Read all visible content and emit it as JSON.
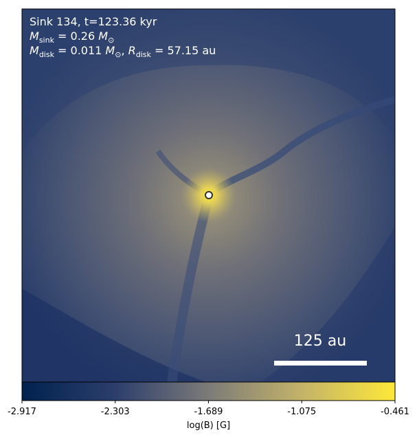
{
  "chart_data": {
    "type": "image",
    "annotations": [
      [
        {
          "text": "Sink 134, t=123.36 kyr"
        }
      ],
      [
        {
          "text": "M",
          "style": "italic"
        },
        {
          "text": "sink",
          "style": "sub"
        },
        {
          "text": " = 0.26 "
        },
        {
          "text": "M",
          "style": "italic"
        },
        {
          "text": "⊙",
          "style": "sub"
        }
      ],
      [
        {
          "text": "M",
          "style": "italic"
        },
        {
          "text": "disk",
          "style": "sub"
        },
        {
          "text": " = 0.011 "
        },
        {
          "text": "M",
          "style": "italic"
        },
        {
          "text": "⊙",
          "style": "sub"
        },
        {
          "text": ", "
        },
        {
          "text": "R",
          "style": "italic"
        },
        {
          "text": "disk",
          "style": "sub"
        },
        {
          "text": " = 57.15 au"
        }
      ]
    ],
    "scalebar": "125 au",
    "colorbar": {
      "label": "log(B) [G]",
      "lim": [
        -2.917,
        -0.461
      ],
      "ticks": [
        -2.917,
        -2.303,
        -1.689,
        -1.075,
        -0.461
      ],
      "colors": [
        "#00224e",
        "#2c3e6c",
        "#7c7b78",
        "#c3b369",
        "#fee838"
      ]
    }
  }
}
